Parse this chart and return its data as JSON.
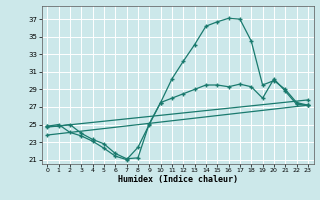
{
  "xlabel": "Humidex (Indice chaleur)",
  "bg_color": "#cce8ea",
  "grid_color": "#ffffff",
  "line_color": "#1a7a6e",
  "xlim": [
    -0.5,
    23.5
  ],
  "ylim": [
    20.5,
    38.5
  ],
  "xticks": [
    0,
    1,
    2,
    3,
    4,
    5,
    6,
    7,
    8,
    9,
    10,
    11,
    12,
    13,
    14,
    15,
    16,
    17,
    18,
    19,
    20,
    21,
    22,
    23
  ],
  "yticks": [
    21,
    23,
    25,
    27,
    29,
    31,
    33,
    35,
    37
  ],
  "curve_top_x": [
    0,
    1,
    2,
    3,
    4,
    5,
    6,
    7,
    8,
    9,
    10,
    11,
    12,
    13,
    14,
    15,
    16,
    17,
    18,
    19,
    20,
    21,
    22,
    23
  ],
  "curve_top_y": [
    24.8,
    24.8,
    25.0,
    24.0,
    23.3,
    22.8,
    21.7,
    21.1,
    21.2,
    25.1,
    27.5,
    30.2,
    32.2,
    34.1,
    36.2,
    36.7,
    37.1,
    37.0,
    34.5,
    29.5,
    30.0,
    29.0,
    27.5,
    27.2
  ],
  "line1_x": [
    0,
    23
  ],
  "line1_y": [
    24.7,
    27.8
  ],
  "line2_x": [
    0,
    23
  ],
  "line2_y": [
    23.8,
    27.2
  ],
  "curve_bot_x": [
    0,
    1,
    2,
    3,
    4,
    5,
    6,
    7,
    8,
    9,
    10,
    11,
    12,
    13,
    14,
    15,
    16,
    17,
    18,
    19,
    20,
    21,
    22,
    23
  ],
  "curve_bot_y": [
    24.8,
    25.0,
    24.1,
    23.7,
    23.1,
    22.3,
    21.4,
    21.0,
    22.4,
    25.0,
    27.5,
    28.0,
    28.5,
    29.0,
    29.5,
    29.5,
    29.3,
    29.6,
    29.3,
    28.0,
    30.2,
    28.8,
    27.3,
    27.2
  ]
}
